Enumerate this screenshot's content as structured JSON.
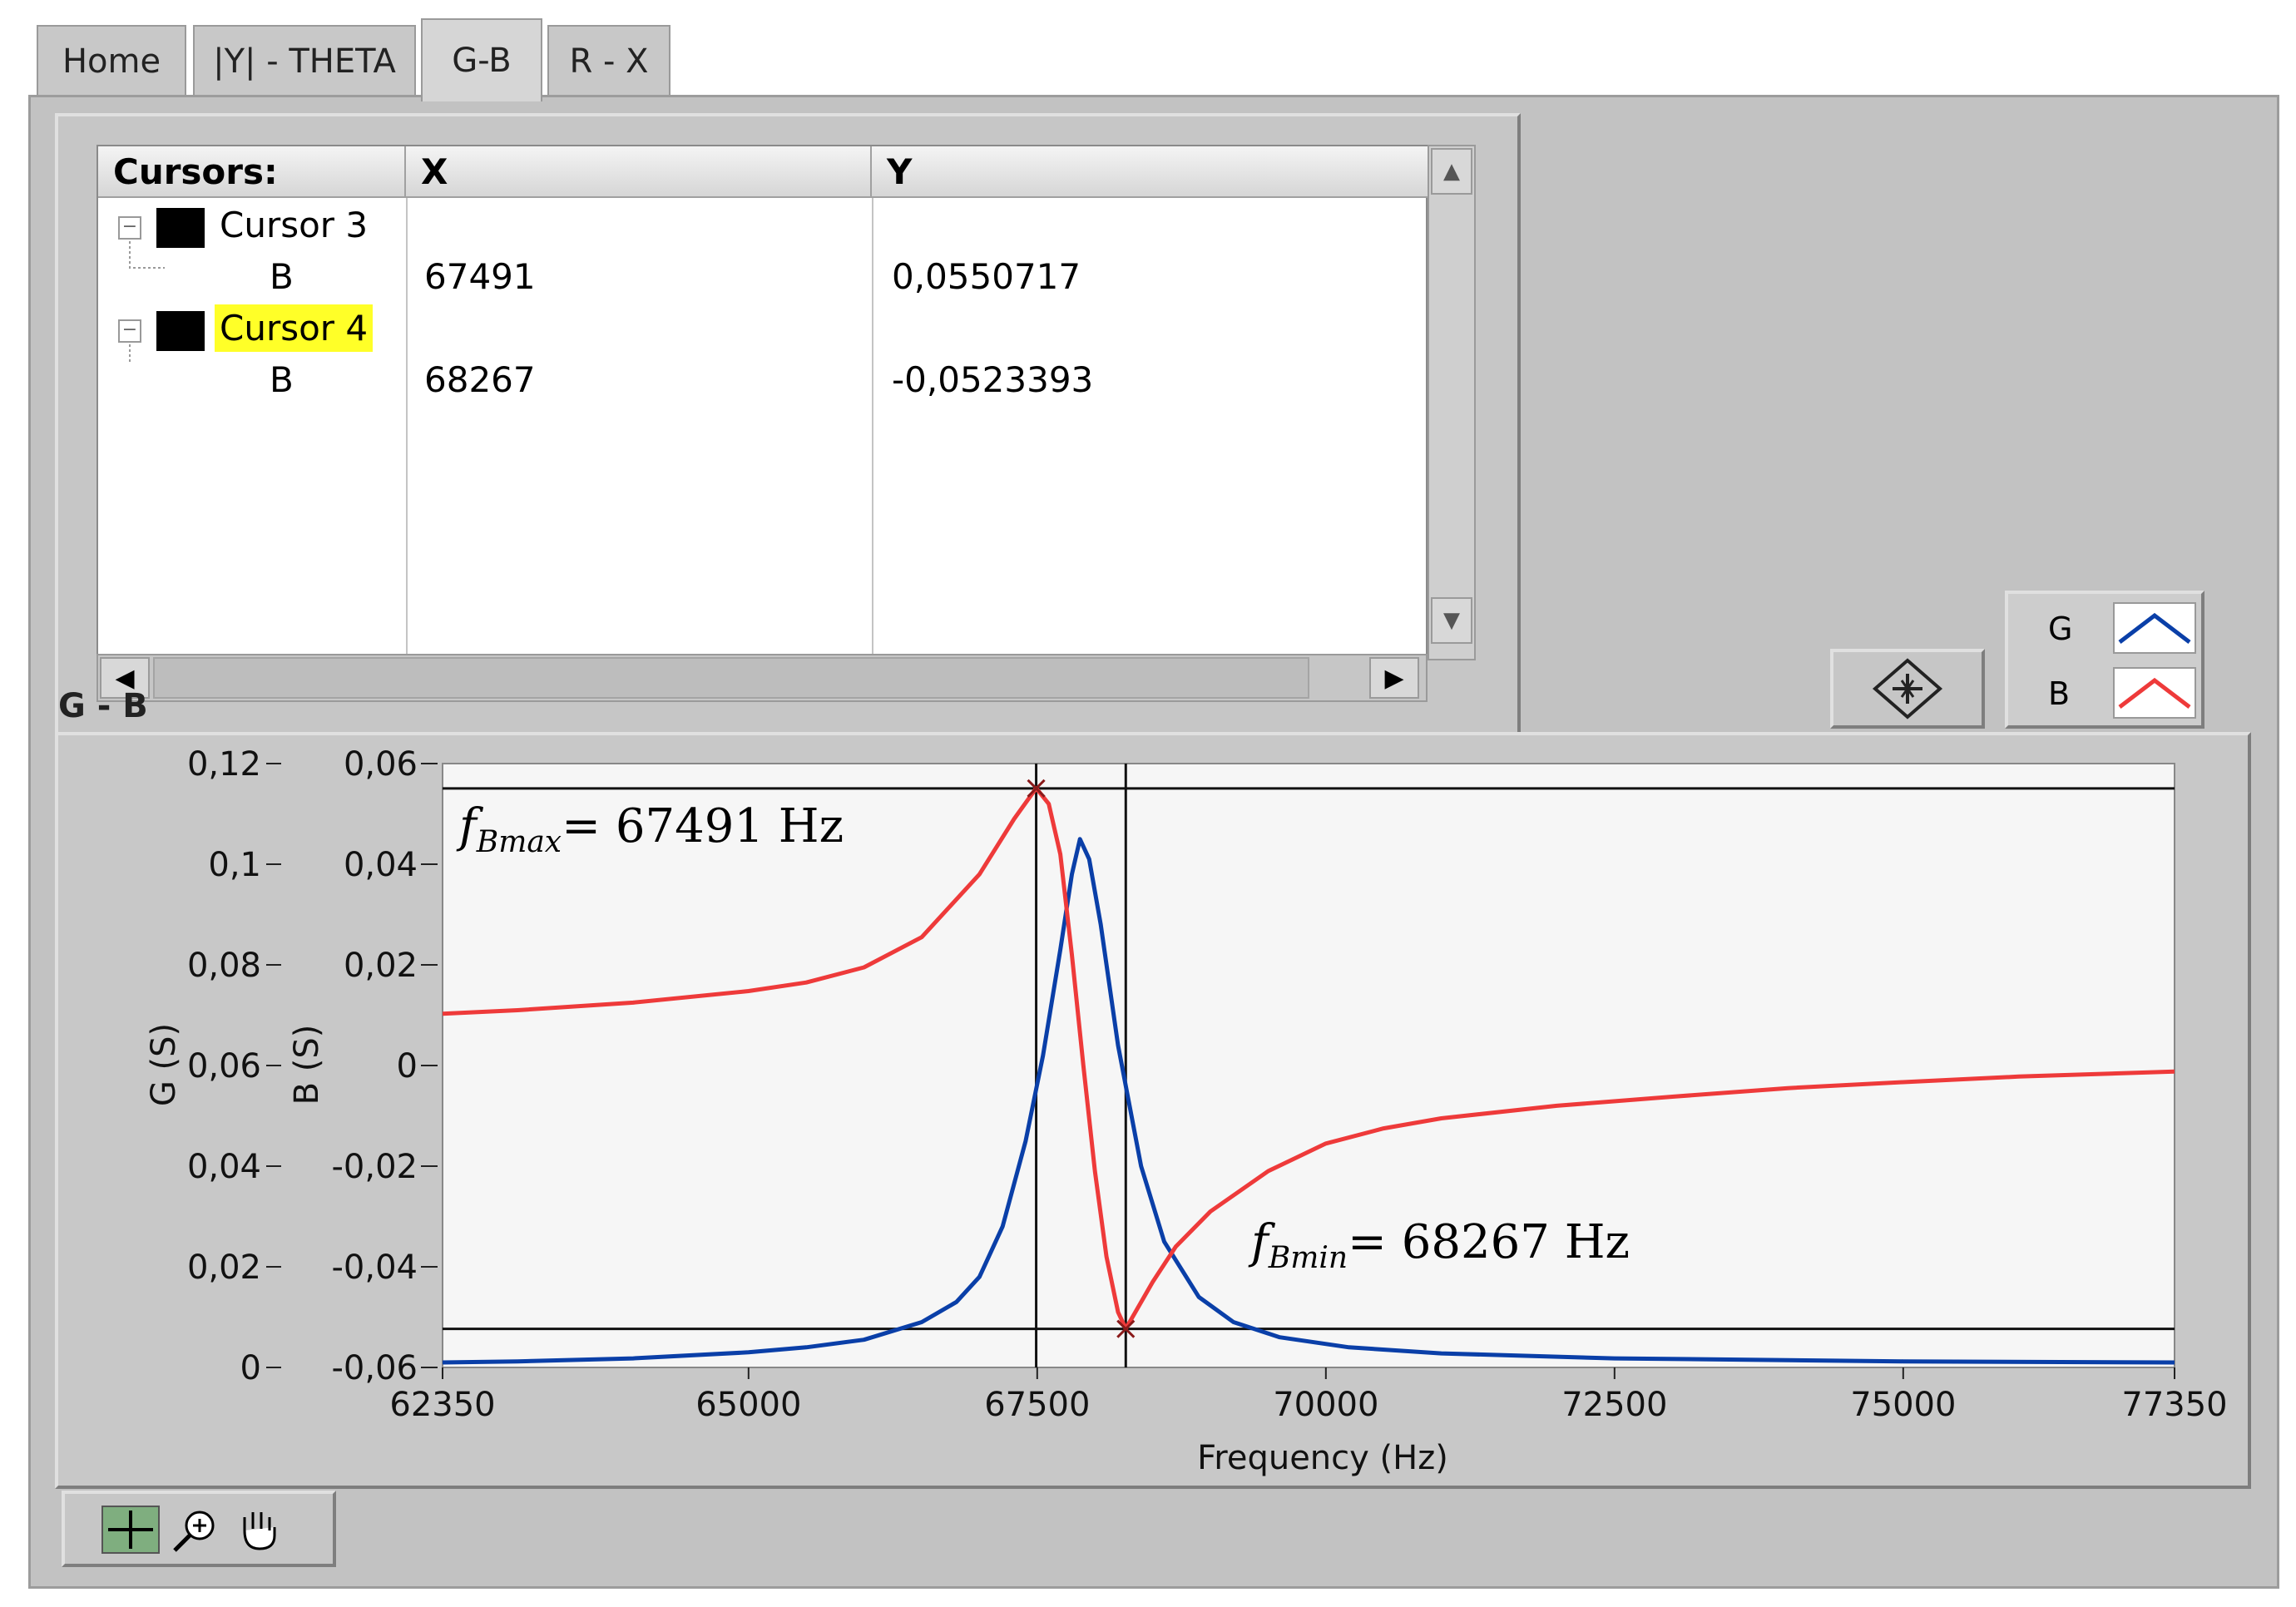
{
  "tabs": [
    {
      "label": "Home"
    },
    {
      "label": "|Y| - THETA"
    },
    {
      "label": "G-B"
    },
    {
      "label": "R - X"
    }
  ],
  "active_tab": "G-B",
  "cursor_table": {
    "headers": [
      "Cursors:",
      "X",
      "Y"
    ],
    "rows": [
      {
        "name": "Cursor 3",
        "plot": "B",
        "x": "67491",
        "y": "0,0550717",
        "highlighted": false
      },
      {
        "name": "Cursor 4",
        "plot": "B",
        "x": "68267",
        "y": "-0,0523393",
        "highlighted": true
      }
    ]
  },
  "legend": [
    {
      "name": "G",
      "color": "#0a3fa8"
    },
    {
      "name": "B",
      "color": "#ee3a3a"
    }
  ],
  "graph_label": "G - B",
  "chart_data": {
    "type": "line",
    "xlabel": "Frequency (Hz)",
    "ylabel_left": "G (S)",
    "ylabel_right": "B (S)",
    "xlim": [
      62350,
      77350
    ],
    "xticks": [
      "62350",
      "65000",
      "67500",
      "70000",
      "72500",
      "75000",
      "77350"
    ],
    "y_g_lim": [
      0,
      0.12
    ],
    "g_ticks": [
      "0,12",
      "0,1",
      "0,08",
      "0,06",
      "0,04",
      "0,02",
      "0"
    ],
    "y_b_lim": [
      -0.06,
      0.06
    ],
    "b_ticks": [
      "0,06",
      "0,04",
      "0,02",
      "0",
      "-0,02",
      "-0,04",
      "-0,06"
    ],
    "series": [
      {
        "name": "G",
        "color": "#0a3fa8",
        "x": [
          62350,
          63000,
          64000,
          65000,
          65500,
          66000,
          66500,
          66800,
          67000,
          67200,
          67400,
          67550,
          67700,
          67800,
          67870,
          67950,
          68050,
          68200,
          68400,
          68600,
          68900,
          69200,
          69600,
          70200,
          71000,
          72500,
          75000,
          77350
        ],
        "y": [
          0.001,
          0.0012,
          0.0018,
          0.003,
          0.004,
          0.0055,
          0.009,
          0.013,
          0.018,
          0.028,
          0.045,
          0.062,
          0.083,
          0.098,
          0.105,
          0.101,
          0.088,
          0.064,
          0.04,
          0.025,
          0.014,
          0.009,
          0.006,
          0.004,
          0.0028,
          0.0018,
          0.0012,
          0.001
        ]
      },
      {
        "name": "B",
        "color": "#ee3a3a",
        "x": [
          62350,
          63000,
          64000,
          65000,
          65500,
          66000,
          66500,
          67000,
          67300,
          67491,
          67600,
          67700,
          67800,
          67900,
          68000,
          68100,
          68200,
          68267,
          68350,
          68500,
          68700,
          69000,
          69500,
          70000,
          70500,
          71000,
          72000,
          73000,
          74000,
          75000,
          76000,
          77350
        ],
        "y": [
          0.0103,
          0.011,
          0.0125,
          0.0148,
          0.0165,
          0.0195,
          0.0255,
          0.038,
          0.049,
          0.0551,
          0.052,
          0.042,
          0.022,
          0.0,
          -0.021,
          -0.038,
          -0.049,
          -0.0523,
          -0.049,
          -0.043,
          -0.036,
          -0.029,
          -0.021,
          -0.0155,
          -0.0125,
          -0.0105,
          -0.008,
          -0.0062,
          -0.0045,
          -0.0033,
          -0.0022,
          -0.0012
        ]
      }
    ],
    "cursors": [
      {
        "x": 67491,
        "y": 0.0550717
      },
      {
        "x": 68267,
        "y": -0.0523393
      }
    ],
    "annotations": [
      {
        "sub": "Bmax",
        "text": "= 67491 Hz"
      },
      {
        "sub": "Bmin",
        "text": "= 68267 Hz"
      }
    ]
  },
  "tools": [
    {
      "name": "cursor-tool-icon"
    },
    {
      "name": "zoom-tool-icon"
    },
    {
      "name": "pan-tool-icon"
    }
  ]
}
